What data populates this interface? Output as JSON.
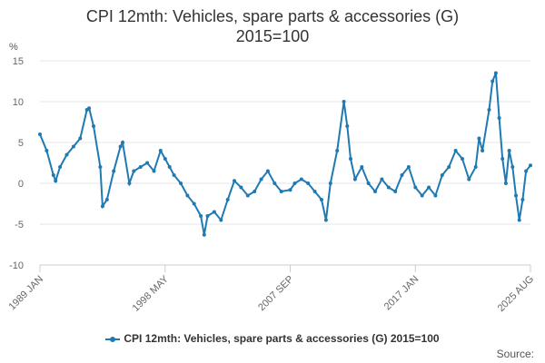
{
  "title_line1": "CPI 12mth: Vehicles, spare parts & accessories (G)",
  "title_line2": "2015=100",
  "source_label": "Source:",
  "chart_data": {
    "type": "line",
    "title": "CPI 12mth: Vehicles, spare parts & accessories (G) 2015=100",
    "ylabel": "%",
    "xlabel": "",
    "ylim": [
      -10,
      15
    ],
    "yticks": [
      -10,
      -5,
      0,
      5,
      10,
      15
    ],
    "x_range": [
      "1989 JAN",
      "2025 AUG"
    ],
    "x_tick_labels": [
      "1989 JAN",
      "1998 MAY",
      "2007 SEP",
      "2017 JAN",
      "2025 AUG"
    ],
    "legend_position": "bottom",
    "grid": "horizontal",
    "color": "#1f7ab3",
    "series": [
      {
        "name": "CPI 12mth: Vehicles, spare parts & accessories (G) 2015=100",
        "points": [
          [
            "1989-01",
            6.0
          ],
          [
            "1989-07",
            4.0
          ],
          [
            "1990-01",
            1.0
          ],
          [
            "1990-03",
            0.3
          ],
          [
            "1990-07",
            2.0
          ],
          [
            "1991-01",
            3.5
          ],
          [
            "1991-07",
            4.5
          ],
          [
            "1992-01",
            5.5
          ],
          [
            "1992-07",
            9.0
          ],
          [
            "1992-09",
            9.2
          ],
          [
            "1993-01",
            7.0
          ],
          [
            "1993-07",
            2.0
          ],
          [
            "1993-09",
            -2.8
          ],
          [
            "1994-01",
            -2.0
          ],
          [
            "1994-07",
            1.5
          ],
          [
            "1995-01",
            4.5
          ],
          [
            "1995-03",
            5.0
          ],
          [
            "1995-09",
            0.0
          ],
          [
            "1996-01",
            1.5
          ],
          [
            "1996-07",
            2.0
          ],
          [
            "1997-01",
            2.5
          ],
          [
            "1997-07",
            1.5
          ],
          [
            "1998-01",
            4.0
          ],
          [
            "1998-05",
            3.0
          ],
          [
            "1998-09",
            2.0
          ],
          [
            "1999-01",
            1.0
          ],
          [
            "1999-07",
            0.0
          ],
          [
            "2000-01",
            -1.5
          ],
          [
            "2000-07",
            -2.5
          ],
          [
            "2001-01",
            -4.0
          ],
          [
            "2001-04",
            -6.3
          ],
          [
            "2001-07",
            -4.0
          ],
          [
            "2002-01",
            -3.5
          ],
          [
            "2002-07",
            -4.5
          ],
          [
            "2003-01",
            -2.0
          ],
          [
            "2003-07",
            0.3
          ],
          [
            "2004-01",
            -0.5
          ],
          [
            "2004-07",
            -1.5
          ],
          [
            "2005-01",
            -1.0
          ],
          [
            "2005-07",
            0.5
          ],
          [
            "2006-01",
            1.5
          ],
          [
            "2006-07",
            0.0
          ],
          [
            "2007-01",
            -1.0
          ],
          [
            "2007-09",
            -0.8
          ],
          [
            "2008-01",
            0.0
          ],
          [
            "2008-07",
            0.5
          ],
          [
            "2009-01",
            0.0
          ],
          [
            "2009-07",
            -1.0
          ],
          [
            "2010-01",
            -2.0
          ],
          [
            "2010-05",
            -4.5
          ],
          [
            "2010-09",
            0.0
          ],
          [
            "2011-03",
            4.0
          ],
          [
            "2011-09",
            10.0
          ],
          [
            "2011-12",
            7.0
          ],
          [
            "2012-03",
            3.0
          ],
          [
            "2012-07",
            0.5
          ],
          [
            "2013-01",
            2.0
          ],
          [
            "2013-07",
            0.0
          ],
          [
            "2014-01",
            -1.0
          ],
          [
            "2014-07",
            0.5
          ],
          [
            "2015-01",
            -0.5
          ],
          [
            "2015-07",
            -1.0
          ],
          [
            "2016-01",
            1.0
          ],
          [
            "2016-07",
            2.0
          ],
          [
            "2017-01",
            -0.5
          ],
          [
            "2017-07",
            -1.5
          ],
          [
            "2018-01",
            -0.5
          ],
          [
            "2018-07",
            -1.5
          ],
          [
            "2019-01",
            1.0
          ],
          [
            "2019-07",
            2.0
          ],
          [
            "2020-01",
            4.0
          ],
          [
            "2020-07",
            3.0
          ],
          [
            "2021-01",
            0.5
          ],
          [
            "2021-07",
            2.0
          ],
          [
            "2021-10",
            5.5
          ],
          [
            "2022-01",
            4.0
          ],
          [
            "2022-07",
            9.0
          ],
          [
            "2022-10",
            12.5
          ],
          [
            "2023-01",
            13.5
          ],
          [
            "2023-04",
            8.0
          ],
          [
            "2023-07",
            3.0
          ],
          [
            "2023-10",
            0.0
          ],
          [
            "2024-01",
            4.0
          ],
          [
            "2024-04",
            2.0
          ],
          [
            "2024-07",
            -1.5
          ],
          [
            "2024-10",
            -4.5
          ],
          [
            "2025-01",
            -2.0
          ],
          [
            "2025-04",
            1.5
          ],
          [
            "2025-08",
            2.2
          ]
        ]
      }
    ]
  }
}
